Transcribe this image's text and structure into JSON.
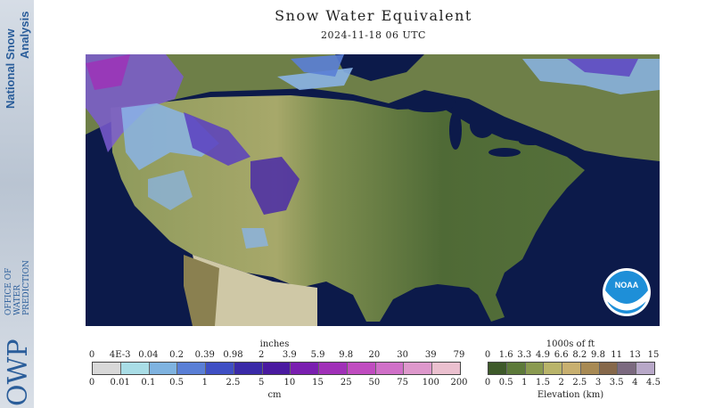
{
  "header": {
    "title": "Snow Water Equivalent",
    "timestamp": "2024-11-18 06 UTC"
  },
  "branding": {
    "nohrsc_line1": "National Snow",
    "nohrsc_line2": "Analysis",
    "owp_initials": "OWP",
    "owp_name_1": "OFFICE OF",
    "owp_name_2": "WATER",
    "owp_name_3": "PREDICTION",
    "noaa_logo": "NOAA"
  },
  "swe_legend": {
    "top_unit": "inches",
    "bottom_unit": "cm",
    "top_ticks": [
      "0",
      "4E-3",
      "0.04",
      "0.2",
      "0.39",
      "0.98",
      "2",
      "3.9",
      "5.9",
      "9.8",
      "20",
      "30",
      "39",
      "79"
    ],
    "bottom_ticks": [
      "0",
      "0.01",
      "0.1",
      "0.5",
      "1",
      "2.5",
      "5",
      "10",
      "15",
      "25",
      "50",
      "75",
      "100",
      "200"
    ],
    "colors": [
      "#d8d8d8",
      "#a9dde6",
      "#7fb3e0",
      "#5a7fd6",
      "#3f4fc4",
      "#3a2aa8",
      "#4a1aa0",
      "#7a1fb0",
      "#a030b8",
      "#c04cc0",
      "#d070c8",
      "#de98cc",
      "#ebc0cf"
    ]
  },
  "elevation_legend": {
    "top_unit": "1000s of ft",
    "bottom_unit": "Elevation (km)",
    "top_ticks": [
      "0",
      "1.6",
      "3.3",
      "4.9",
      "6.6",
      "8.2",
      "9.8",
      "11",
      "13",
      "15"
    ],
    "bottom_ticks": [
      "0",
      "0.5",
      "1",
      "1.5",
      "2",
      "2.5",
      "3",
      "3.5",
      "4",
      "4.5"
    ],
    "colors": [
      "#3e5a2a",
      "#5d7a3a",
      "#8a9a50",
      "#b9b46a",
      "#c8b070",
      "#a88a54",
      "#86684a",
      "#7c6a80",
      "#b8a8c8"
    ]
  }
}
